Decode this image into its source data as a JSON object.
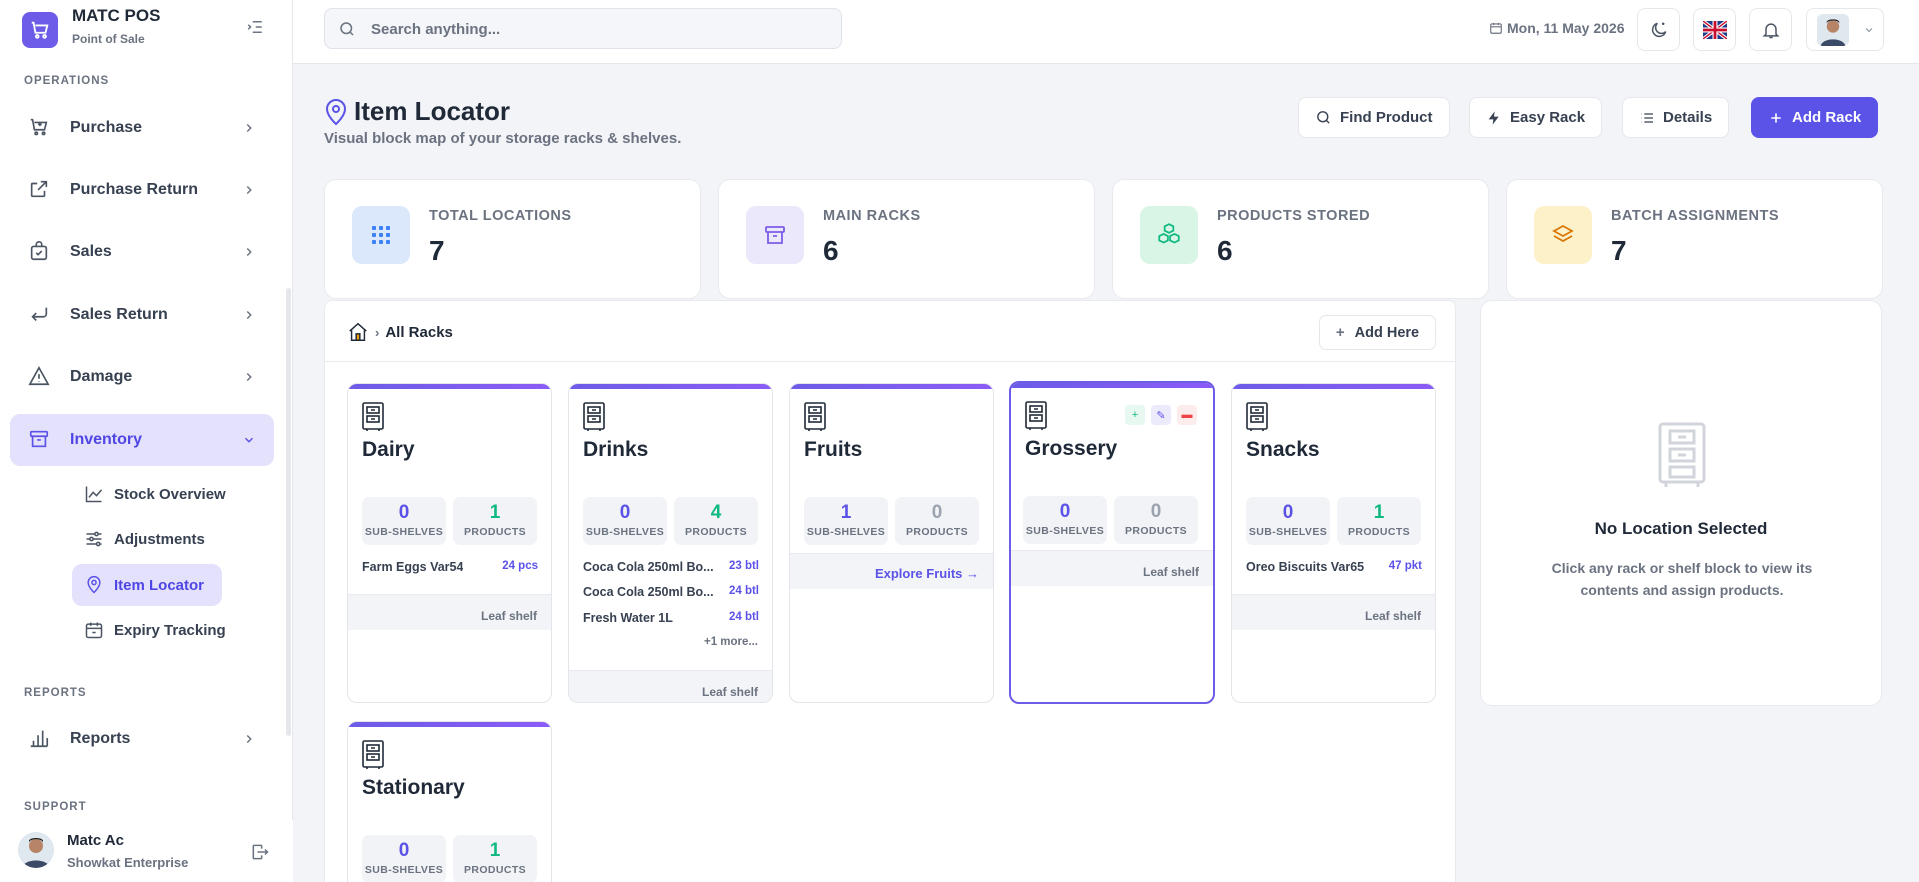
{
  "sidebar": {
    "brand_name": "MATC POS",
    "brand_sub": "Point of Sale",
    "sections": {
      "operations": "OPERATIONS",
      "reports": "REPORTS",
      "support": "SUPPORT"
    },
    "items": [
      {
        "label": "Purchase",
        "icon": "cart-icon"
      },
      {
        "label": "Purchase Return",
        "icon": "external-link-icon"
      },
      {
        "label": "Sales",
        "icon": "shopping-bag-icon"
      },
      {
        "label": "Sales Return",
        "icon": "return-arrow-icon"
      },
      {
        "label": "Damage",
        "icon": "warning-triangle-icon"
      },
      {
        "label": "Inventory",
        "icon": "archive-icon"
      }
    ],
    "inventory_sub": [
      {
        "label": "Stock Overview",
        "icon": "trend-line-icon"
      },
      {
        "label": "Adjustments",
        "icon": "sliders-icon"
      },
      {
        "label": "Item Locator",
        "icon": "map-pin-icon"
      },
      {
        "label": "Expiry Tracking",
        "icon": "calendar-icon"
      }
    ],
    "reports_item": {
      "label": "Reports",
      "icon": "bar-chart-icon"
    },
    "user": {
      "name": "Matc Ac",
      "org": "Showkat Enterprise"
    }
  },
  "topbar": {
    "search_placeholder": "Search anything...",
    "date": "Mon, 11 May 2026"
  },
  "page": {
    "title": "Item Locator",
    "subtitle": "Visual block map of your storage racks & shelves.",
    "actions": {
      "find": "Find Product",
      "easy": "Easy Rack",
      "details": "Details",
      "add": "Add Rack"
    }
  },
  "stats": [
    {
      "label": "TOTAL LOCATIONS",
      "value": "7",
      "color": "#dbe8fb",
      "icon": "grid-icon"
    },
    {
      "label": "MAIN RACKS",
      "value": "6",
      "color": "#ece8fb",
      "icon": "archive-box-icon"
    },
    {
      "label": "PRODUCTS STORED",
      "value": "6",
      "color": "#d9f5e6",
      "icon": "cubes-icon"
    },
    {
      "label": "BATCH ASSIGNMENTS",
      "value": "7",
      "color": "#fdf1c9",
      "icon": "layers-icon"
    }
  ],
  "browser": {
    "breadcrumb": "All Racks",
    "add_here": "Add Here",
    "sub_label": "SUB-SHELVES",
    "prod_label": "PRODUCTS",
    "leaf_label": "Leaf shelf",
    "racks": [
      {
        "name": "Dairy",
        "sub": "0",
        "products": "1",
        "items": [
          {
            "name": "Farm Eggs Var54",
            "qty": "24 pcs"
          }
        ]
      },
      {
        "name": "Drinks",
        "sub": "0",
        "products": "4",
        "items": [
          {
            "name": "Coca Cola 250ml Bo...",
            "qty": "23 btl"
          },
          {
            "name": "Coca Cola 250ml Bo...",
            "qty": "24 btl"
          },
          {
            "name": "Fresh Water 1L",
            "qty": "24 btl"
          }
        ],
        "more": "+1 more..."
      },
      {
        "name": "Fruits",
        "sub": "1",
        "products": "0",
        "explore": "Explore Fruits →"
      },
      {
        "name": "Grossery",
        "sub": "0",
        "products": "0"
      },
      {
        "name": "Snacks",
        "sub": "0",
        "products": "1",
        "items": [
          {
            "name": "Oreo Biscuits Var65",
            "qty": "47 pkt"
          }
        ]
      },
      {
        "name": "Stationary",
        "sub": "0",
        "products": "1"
      }
    ]
  },
  "detail": {
    "title": "No Location Selected",
    "text": "Click any rack or shelf block to view its contents and assign products."
  }
}
